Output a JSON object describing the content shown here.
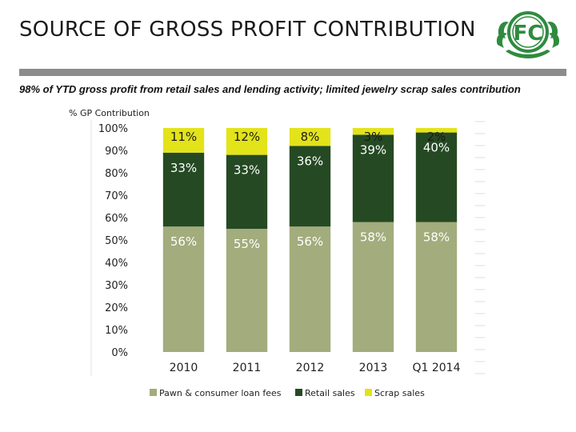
{
  "slide": {
    "title": "SOURCE OF GROSS PROFIT CONTRIBUTION",
    "subtitle": "98% of YTD gross profit from retail sales and lending activity; limited jewelry scrap sales contribution",
    "logo_text": "FC"
  },
  "colors": {
    "pawn": "#a2ac7c",
    "retail": "#254a23",
    "scrap": "#e3e31a",
    "rule": "#8c8c8c",
    "logo": "#2e8b3e"
  },
  "chart_data": {
    "type": "bar",
    "stacked": true,
    "title": "",
    "ylabel": "% GP Contribution",
    "xlabel": "",
    "ylim": [
      0,
      100
    ],
    "yticks": [
      "0%",
      "10%",
      "20%",
      "30%",
      "40%",
      "50%",
      "60%",
      "70%",
      "80%",
      "90%",
      "100%"
    ],
    "categories": [
      "2010",
      "2011",
      "2012",
      "2013",
      "Q1 2014"
    ],
    "series": [
      {
        "name": "Pawn & consumer loan fees",
        "values": [
          56,
          55,
          56,
          58,
          58
        ],
        "labels": [
          "56%",
          "55%",
          "56%",
          "58%",
          "58%"
        ]
      },
      {
        "name": "Retail sales",
        "values": [
          33,
          33,
          36,
          39,
          40
        ],
        "labels": [
          "33%",
          "33%",
          "36%",
          "39%",
          "40%"
        ]
      },
      {
        "name": "Scrap sales",
        "values": [
          11,
          12,
          8,
          3,
          2
        ],
        "labels": [
          "11%",
          "12%",
          "8%",
          "3%",
          "2%"
        ]
      }
    ],
    "legend_position": "bottom",
    "grid": false
  }
}
